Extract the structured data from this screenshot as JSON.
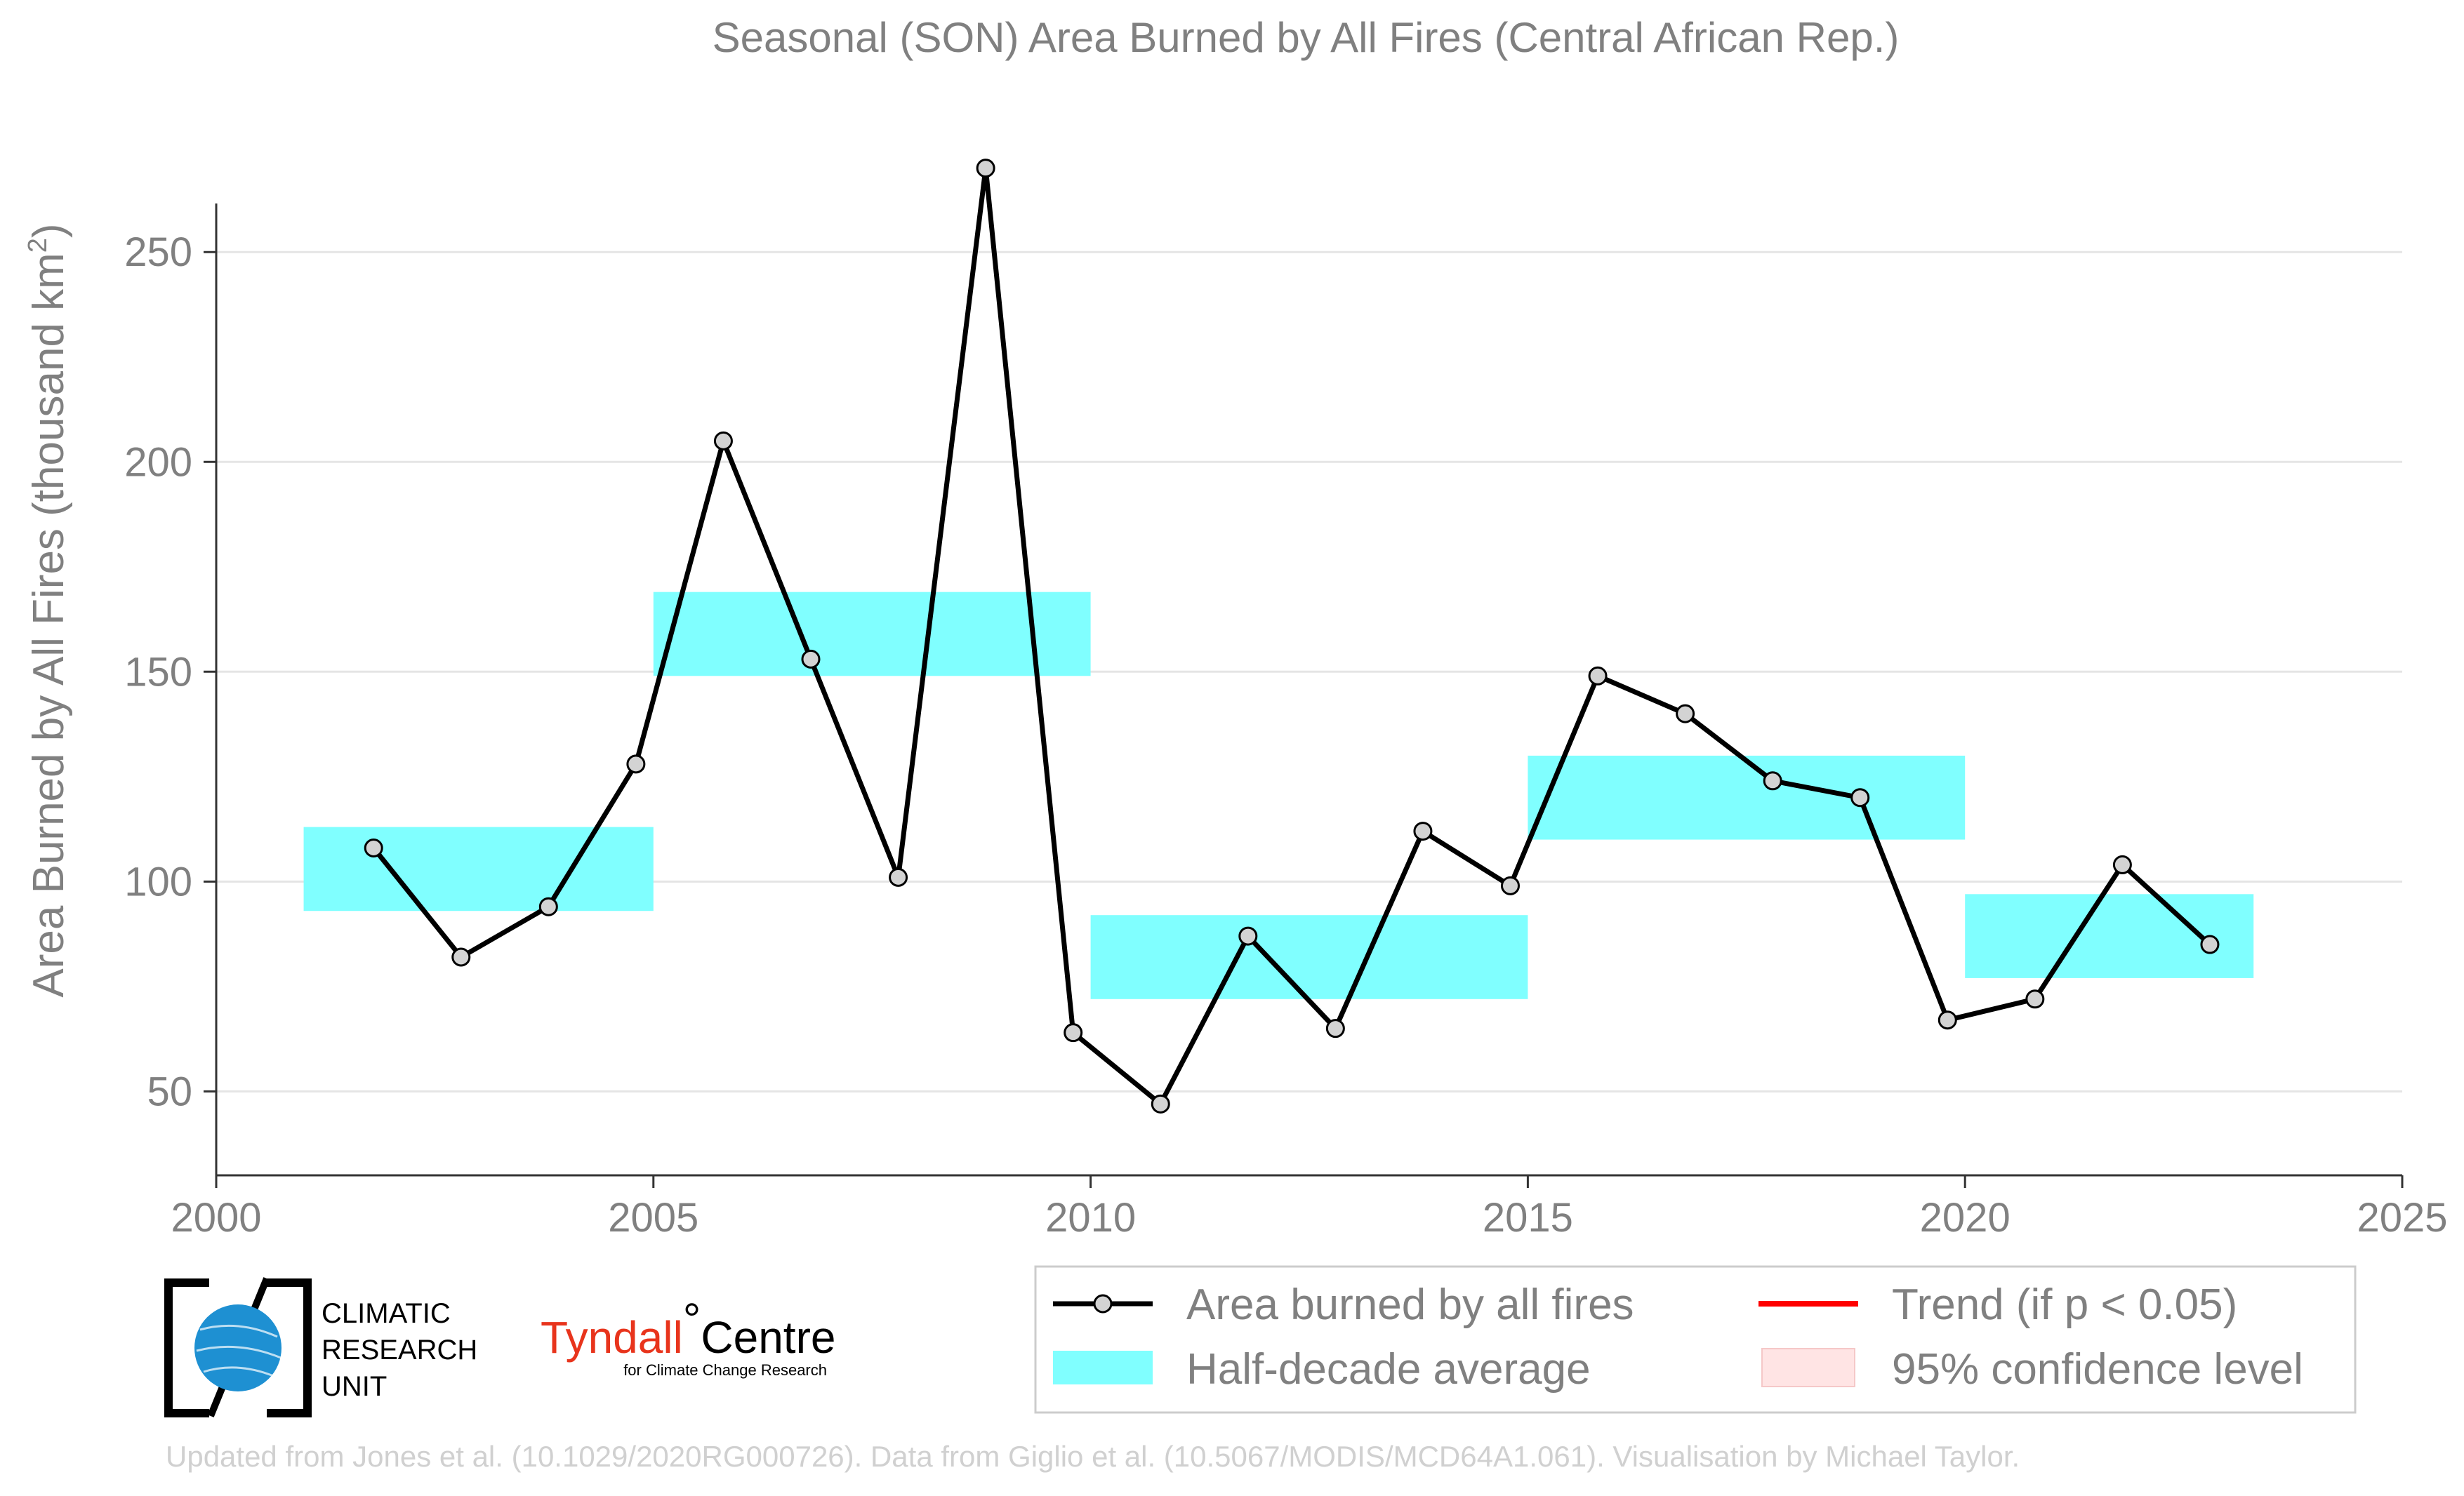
{
  "chart_data": {
    "type": "line",
    "title": "Seasonal (SON) Area Burned by All Fires (Central African Rep.)",
    "ylabel": "Area Burned by All Fires (thousand km",
    "ylabel_sup": "2",
    "ylabel_close": ")",
    "xlabel": "",
    "xlim": [
      2000,
      2025
    ],
    "ylim": [
      30,
      290
    ],
    "xticks": [
      2000,
      2005,
      2010,
      2015,
      2020,
      2025
    ],
    "yticks": [
      50,
      100,
      150,
      200,
      250
    ],
    "grid": "horizontal",
    "legend_position": "bottom-right",
    "series": [
      {
        "name": "Area burned by all fires",
        "color": "#000000",
        "marker_fill": "#d3d3d3",
        "x": [
          2001.8,
          2002.8,
          2003.8,
          2004.8,
          2005.8,
          2006.8,
          2007.8,
          2008.8,
          2009.8,
          2010.8,
          2011.8,
          2012.8,
          2013.8,
          2014.8,
          2015.8,
          2016.8,
          2017.8,
          2018.8,
          2019.8,
          2020.8,
          2021.8,
          2022.8
        ],
        "y": [
          108,
          82,
          94,
          128,
          205,
          153,
          101,
          270,
          64,
          47,
          87,
          65,
          112,
          99,
          149,
          140,
          124,
          120,
          67,
          72,
          104,
          85
        ]
      }
    ],
    "half_decade_averages": {
      "name": "Half-decade average",
      "color": "#80ffff",
      "periods": [
        {
          "start": 2001,
          "end": 2005,
          "value": 103
        },
        {
          "start": 2005,
          "end": 2010,
          "value": 159
        },
        {
          "start": 2010,
          "end": 2015,
          "value": 82
        },
        {
          "start": 2015,
          "end": 2020,
          "value": 120
        },
        {
          "start": 2020,
          "end": 2023.3,
          "value": 87
        }
      ]
    },
    "legend": [
      {
        "label": "Area burned by all fires",
        "kind": "line-marker",
        "color": "#000000"
      },
      {
        "label": "Trend (if p < 0.05)",
        "kind": "line",
        "color": "#ff0000"
      },
      {
        "label": "Half-decade average",
        "kind": "band",
        "color": "#80ffff"
      },
      {
        "label": "95% confidence level",
        "kind": "patch",
        "color": "#ffe4e4"
      }
    ]
  },
  "logos": {
    "cru_line1": "CLIMATIC",
    "cru_line2": "RESEARCH",
    "cru_line3": "UNIT",
    "tyndall_a": "Tyndall",
    "tyndall_deg": "°",
    "tyndall_b": "Centre",
    "tyndall_sub": "for Climate Change Research"
  },
  "footer": "Updated from Jones et al. (10.1029/2020RG000726). Data from Giglio et al. (10.5067/MODIS/MCD64A1.061). Visualisation by Michael Taylor."
}
